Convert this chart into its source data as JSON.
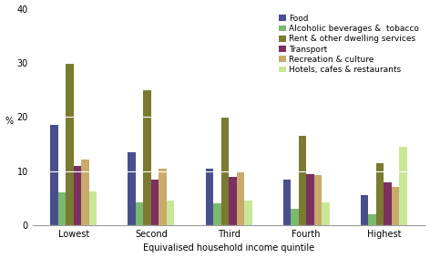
{
  "categories": [
    "Lowest",
    "Second",
    "Third",
    "Fourth",
    "Highest"
  ],
  "series": [
    {
      "name": "Food",
      "color": "#474f8c",
      "values": [
        18.5,
        13.5,
        10.5,
        8.5,
        5.5
      ]
    },
    {
      "name": "Alcoholic beverages &  tobacco",
      "color": "#7bb870",
      "values": [
        6.0,
        4.2,
        4.0,
        3.0,
        2.0
      ]
    },
    {
      "name": "Rent & other dwelling services",
      "color": "#7a7a30",
      "values": [
        30.0,
        25.0,
        20.0,
        16.5,
        11.5
      ]
    },
    {
      "name": "Transport",
      "color": "#7b3060",
      "values": [
        11.0,
        8.5,
        9.0,
        9.5,
        8.0
      ]
    },
    {
      "name": "Recreation & culture",
      "color": "#c8aa6a",
      "values": [
        12.2,
        10.5,
        10.0,
        9.3,
        7.0
      ]
    },
    {
      "name": "Hotels, cafes & restaurants",
      "color": "#c8e898",
      "values": [
        6.2,
        4.5,
        4.5,
        4.2,
        14.5
      ]
    }
  ],
  "ylabel": "%",
  "xlabel": "Equivalised household income quintile",
  "ylim": [
    0,
    40
  ],
  "yticks": [
    0,
    10,
    20,
    30,
    40
  ],
  "background_color": "#ffffff",
  "bar_width": 0.1,
  "axis_fontsize": 7,
  "legend_fontsize": 6.5,
  "tick_fontsize": 7
}
